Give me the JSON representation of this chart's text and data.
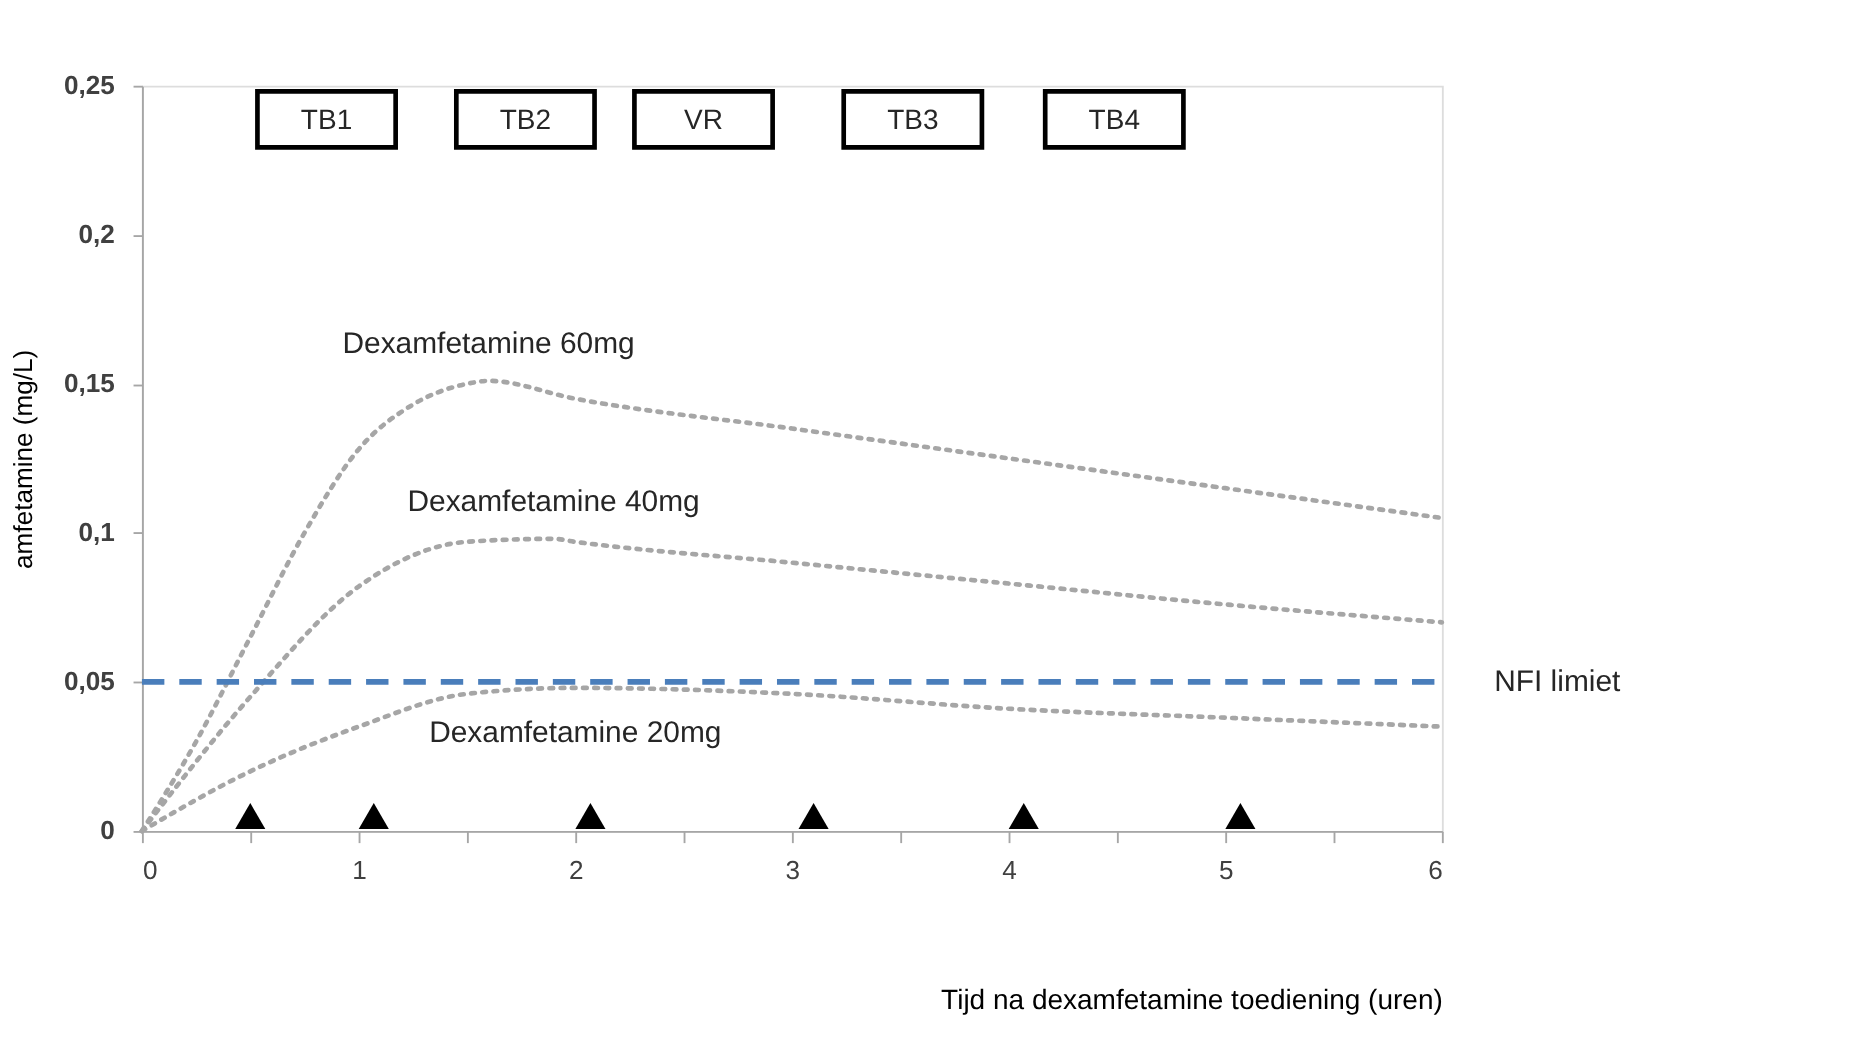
{
  "chart_data": {
    "type": "line",
    "xlabel": "Tijd na dexamfetamine toediening (uren)",
    "ylabel": "amfetamine (mg/L)",
    "xlim": [
      0,
      6
    ],
    "xticks": [
      0,
      {
        "value": 0.5,
        "label": null
      },
      1,
      {
        "value": 1.5,
        "label": null
      },
      2,
      {
        "value": 2.5,
        "label": null
      },
      3,
      {
        "value": 3.5,
        "label": null
      },
      4,
      {
        "value": 4.5,
        "label": null
      },
      5,
      {
        "value": 5.5,
        "label": null
      },
      6
    ],
    "ylim": [
      0,
      0.25
    ],
    "yticks": [
      {
        "value": 0,
        "label": "0"
      },
      {
        "value": 0.05,
        "label": "0,05"
      },
      {
        "value": 0.1,
        "label": "0,1"
      },
      {
        "value": 0.15,
        "label": "0,15"
      },
      {
        "value": 0.2,
        "label": "0,2"
      },
      {
        "value": 0.25,
        "label": "0,25"
      }
    ],
    "grid": false,
    "line_style": "dotted",
    "marker": "none",
    "series": [
      {
        "name": "Dexamfetamine 60mg",
        "color": "#a6a6a6",
        "x": [
          0,
          0.25,
          0.5,
          0.75,
          1,
          1.25,
          1.5,
          1.6,
          2,
          3,
          4,
          5,
          6
        ],
        "values": [
          0,
          0.03,
          0.065,
          0.1,
          0.128,
          0.143,
          0.15,
          0.151,
          0.145,
          0.135,
          0.125,
          0.115,
          0.105
        ]
      },
      {
        "name": "Dexamfetamine 40mg",
        "color": "#a6a6a6",
        "x": [
          0,
          0.5,
          1,
          1.5,
          1.9,
          2,
          3,
          4,
          5,
          6
        ],
        "values": [
          0,
          0.045,
          0.082,
          0.097,
          0.098,
          0.097,
          0.09,
          0.083,
          0.076,
          0.07
        ]
      },
      {
        "name": "Dexamfetamine 20mg",
        "color": "#a6a6a6",
        "x": [
          0,
          0.5,
          1,
          1.5,
          2,
          3,
          4,
          5,
          6
        ],
        "values": [
          0,
          0.02,
          0.035,
          0.046,
          0.048,
          0.046,
          0.041,
          0.038,
          0.035
        ]
      },
      {
        "type": "scatter",
        "marker": "triangle",
        "color": "#000000",
        "x": [
          0.5,
          1.07,
          2.07,
          3.1,
          4.07,
          5.07
        ],
        "values": [
          0.005,
          0.005,
          0.005,
          0.005,
          0.005,
          0.005
        ]
      }
    ],
    "ref_lines": [
      {
        "axis": "y",
        "value": 0.05,
        "label": "NFI limiet",
        "color": "#4a7ebb",
        "line_style": "dashed"
      }
    ],
    "annotations": [
      "TB1",
      "TB2",
      "VR",
      "TB3",
      "TB4"
    ]
  }
}
